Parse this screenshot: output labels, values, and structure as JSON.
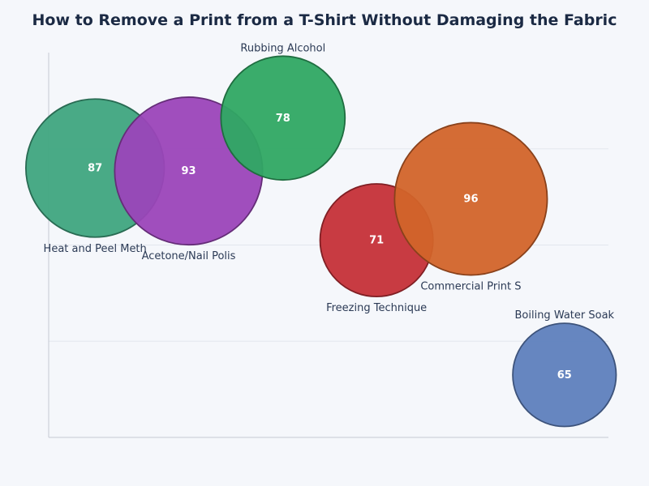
{
  "chart_data": {
    "type": "scatter",
    "title": "How to Remove a Print from a T-Shirt Without Damaging the Fabric",
    "xlabel": "",
    "ylabel": "",
    "xlim": [
      0,
      7
    ],
    "ylim": [
      0,
      4
    ],
    "grid": true,
    "points": [
      {
        "label": "Heat and Peel Meth",
        "x": 0.58,
        "y": 2.8,
        "size": 87,
        "color": "#3fa57f"
      },
      {
        "label": "Acetone/Nail Polis",
        "x": 1.75,
        "y": 2.77,
        "size": 93,
        "color": "#9b45b9"
      },
      {
        "label": "Rubbing Alcohol",
        "x": 2.93,
        "y": 3.32,
        "size": 78,
        "color": "#2fa863"
      },
      {
        "label": "Freezing Technique",
        "x": 4.1,
        "y": 2.05,
        "size": 71,
        "color": "#c53038"
      },
      {
        "label": "Commercial Print S",
        "x": 5.28,
        "y": 2.48,
        "size": 96,
        "color": "#d2642a"
      },
      {
        "label": "Boiling Water Soak",
        "x": 6.45,
        "y": 0.65,
        "size": 65,
        "color": "#5e7fbd"
      }
    ]
  }
}
